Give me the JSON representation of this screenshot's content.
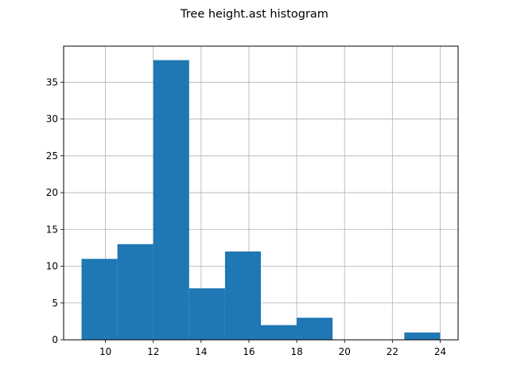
{
  "title": "Tree height.ast histogram",
  "chart_data": {
    "type": "bar",
    "title": "Tree height.ast histogram",
    "xlabel": "",
    "ylabel": "",
    "bins": [
      {
        "x0": 9.0,
        "x1": 10.5,
        "count": 11
      },
      {
        "x0": 10.5,
        "x1": 12.0,
        "count": 13
      },
      {
        "x0": 12.0,
        "x1": 13.5,
        "count": 38
      },
      {
        "x0": 13.5,
        "x1": 15.0,
        "count": 7
      },
      {
        "x0": 15.0,
        "x1": 16.5,
        "count": 12
      },
      {
        "x0": 16.5,
        "x1": 18.0,
        "count": 2
      },
      {
        "x0": 18.0,
        "x1": 19.5,
        "count": 3
      },
      {
        "x0": 19.5,
        "x1": 21.0,
        "count": 0
      },
      {
        "x0": 21.0,
        "x1": 22.5,
        "count": 0
      },
      {
        "x0": 22.5,
        "x1": 24.0,
        "count": 1
      }
    ],
    "xlim": [
      8.25,
      24.75
    ],
    "ylim": [
      0,
      39.9
    ],
    "xticks": [
      10,
      12,
      14,
      16,
      18,
      20,
      22,
      24
    ],
    "yticks": [
      0,
      5,
      10,
      15,
      20,
      25,
      30,
      35
    ],
    "grid": true,
    "legend": "none",
    "bar_color": "#1f77b4",
    "grid_color": "#b0b0b0"
  }
}
